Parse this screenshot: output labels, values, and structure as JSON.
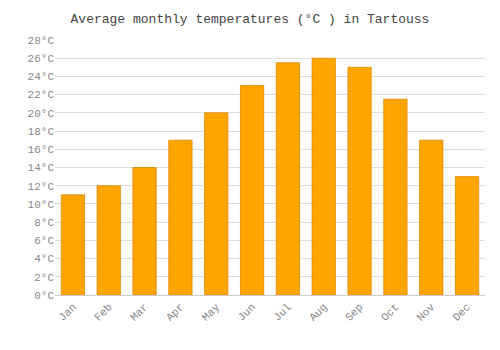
{
  "chart_data": {
    "type": "bar",
    "title": "Average monthly temperatures (°C ) in Tartouss",
    "categories": [
      "Jan",
      "Feb",
      "Mar",
      "Apr",
      "May",
      "Jun",
      "Jul",
      "Aug",
      "Sep",
      "Oct",
      "Nov",
      "Dec"
    ],
    "values": [
      11,
      12,
      14,
      17,
      20,
      23,
      25.5,
      26,
      25,
      21.5,
      17,
      13
    ],
    "color": "#FFA500",
    "ylim": [
      0,
      28
    ],
    "yticks": [
      {
        "value": 0,
        "label": "0°C"
      },
      {
        "value": 2,
        "label": "2°C"
      },
      {
        "value": 4,
        "label": "4°C"
      },
      {
        "value": 6,
        "label": "6°C"
      },
      {
        "value": 8,
        "label": "8°C"
      },
      {
        "value": 10,
        "label": "10°C"
      },
      {
        "value": 12,
        "label": "12°C"
      },
      {
        "value": 14,
        "label": "14°C"
      },
      {
        "value": 16,
        "label": "16°C"
      },
      {
        "value": 18,
        "label": "18°C"
      },
      {
        "value": 20,
        "label": "20°C"
      },
      {
        "value": 22,
        "label": "22°C"
      },
      {
        "value": 24,
        "label": "24°C"
      },
      {
        "value": 26,
        "label": "26°C"
      },
      {
        "value": 28,
        "label": "28°C"
      }
    ],
    "grid": true
  }
}
